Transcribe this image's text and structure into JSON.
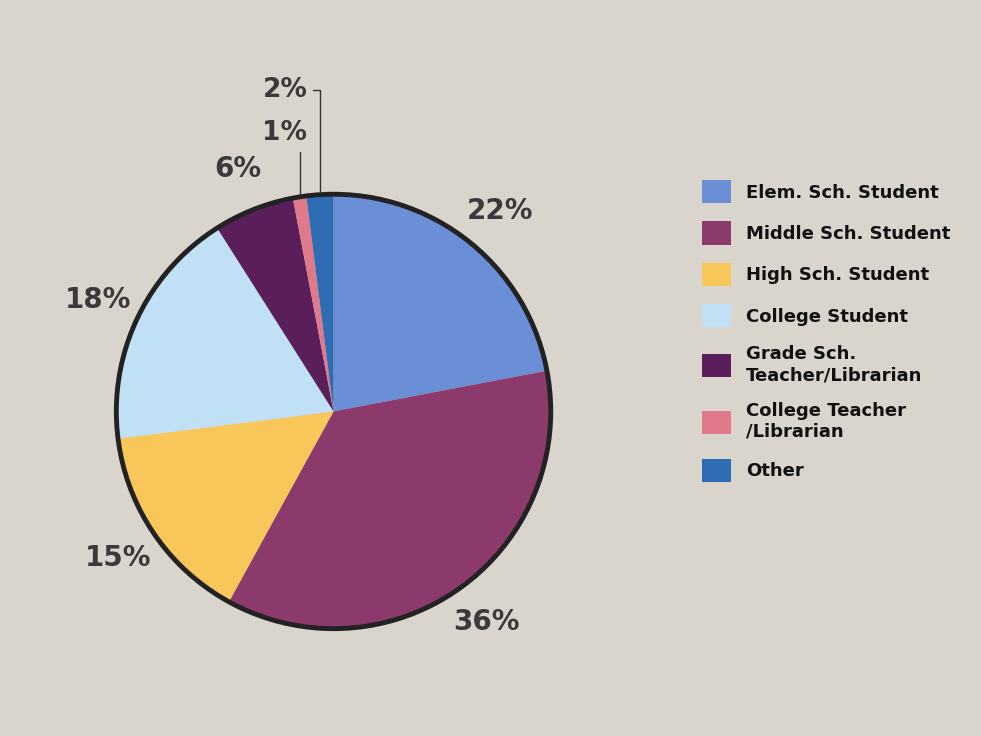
{
  "chart_data": {
    "type": "pie",
    "categories": [
      "Elem. Sch. Student",
      "Middle Sch. Student",
      "High Sch. Student",
      "College Student",
      "Grade Sch.\nTeacher/Librarian",
      "College Teacher\n/Librarian",
      "Other"
    ],
    "values": [
      22,
      36,
      15,
      18,
      6,
      1,
      2
    ],
    "value_labels": [
      "22%",
      "36%",
      "15%",
      "18%",
      "6%",
      "1%",
      "2%"
    ],
    "colors": [
      "#6a8fd6",
      "#8b3a6b",
      "#f9c65a",
      "#bfe0f5",
      "#5a1f5a",
      "#e07a8a",
      "#2e6db4"
    ],
    "data_labels": true,
    "legend": "right"
  }
}
